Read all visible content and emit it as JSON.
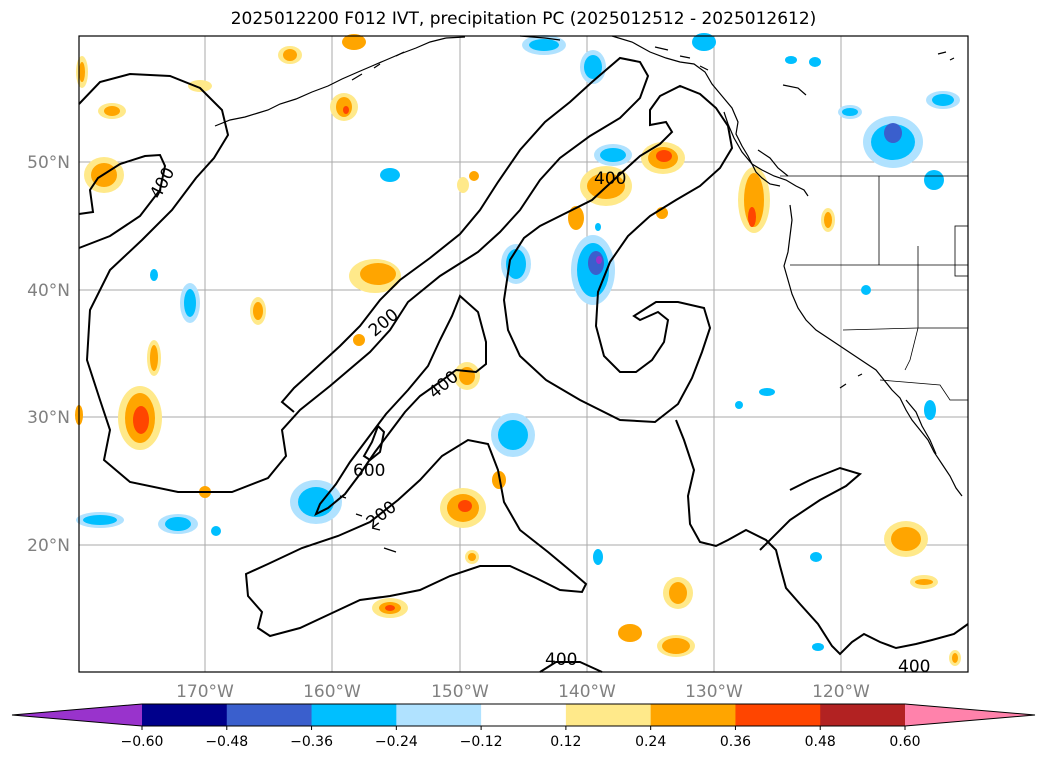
{
  "title": "2025012200 F012 IVT, precipitation PC (2025012512 - 2025012612)",
  "lat_labels": [
    "50°N",
    "40°N",
    "30°N",
    "20°N"
  ],
  "lon_labels": [
    "170°W",
    "160°W",
    "150°W",
    "140°W",
    "130°W",
    "120°W"
  ],
  "contour_labels": [
    {
      "text": "400",
      "region": "northwest"
    },
    {
      "text": "400",
      "region": "gulf-of-alaska"
    },
    {
      "text": "200",
      "region": "central"
    },
    {
      "text": "400",
      "region": "central"
    },
    {
      "text": "600",
      "region": "central"
    },
    {
      "text": "200",
      "region": "south-central"
    },
    {
      "text": "400",
      "region": "south"
    },
    {
      "text": "400",
      "region": "southeast"
    }
  ],
  "colorbar": {
    "ticks": [
      "−0.60",
      "−0.48",
      "−0.36",
      "−0.24",
      "−0.12",
      "0.12",
      "0.24",
      "0.36",
      "0.48",
      "0.60"
    ],
    "colors": [
      "#9933cc",
      "#00008b",
      "#3a5fcd",
      "#00bfff",
      "#b0e2ff",
      "#ffffff",
      "#ffe98a",
      "#ffa500",
      "#ff4500",
      "#b22222",
      "#ff82ab"
    ]
  },
  "colors": {
    "coast": "#000000",
    "grid": "#aaaaaa",
    "contour": "#000000"
  }
}
